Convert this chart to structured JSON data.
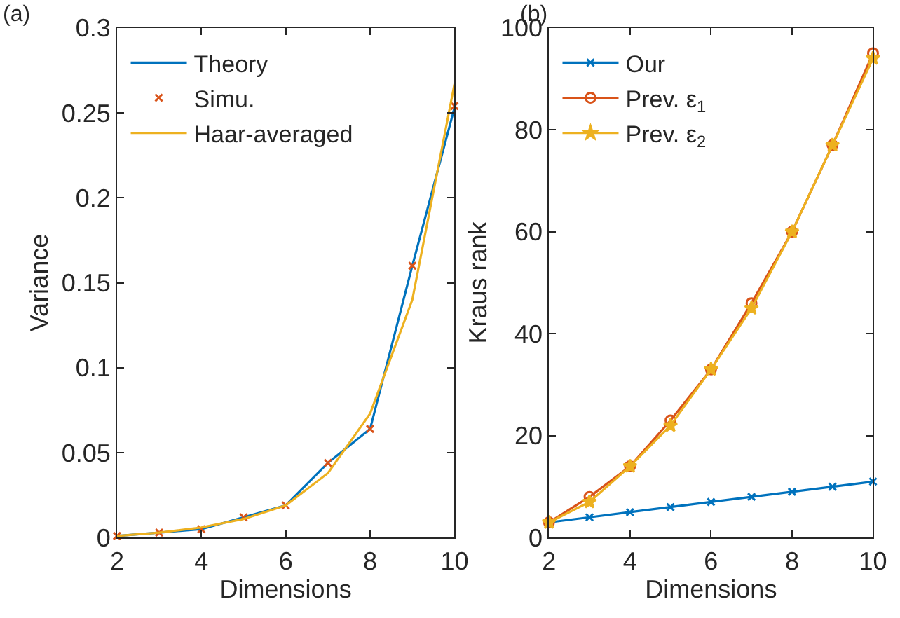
{
  "chart_data": [
    {
      "type": "line",
      "title": "(a)",
      "xlabel": "Dimensions",
      "ylabel": "Variance",
      "x": [
        2,
        3,
        4,
        5,
        6,
        7,
        8,
        9,
        10
      ],
      "xlim": [
        2,
        10
      ],
      "xticks": [
        2,
        4,
        6,
        8,
        10
      ],
      "ylim": [
        0,
        0.3
      ],
      "yticks": [
        0,
        0.05,
        0.1,
        0.15,
        0.2,
        0.25,
        0.3
      ],
      "legend": "top left",
      "series": [
        {
          "name": "Theory",
          "color": "#0072bd",
          "marker": "none",
          "values": [
            0.001,
            0.003,
            0.005,
            0.012,
            0.019,
            0.044,
            0.064,
            0.16,
            0.253
          ]
        },
        {
          "name": "Simu.",
          "type": "scatter",
          "color": "#d95319",
          "marker": "cross",
          "values": [
            0.001,
            0.003,
            0.005,
            0.012,
            0.019,
            0.044,
            0.064,
            0.16,
            0.254
          ]
        },
        {
          "name": "Haar-averaged",
          "color": "#edb120",
          "marker": "none",
          "values": [
            0.001,
            0.003,
            0.006,
            0.011,
            0.019,
            0.038,
            0.073,
            0.14,
            0.267
          ]
        }
      ]
    },
    {
      "type": "line",
      "title": "(b)",
      "xlabel": "Dimensions",
      "ylabel": "Kraus rank",
      "x": [
        2,
        3,
        4,
        5,
        6,
        7,
        8,
        9,
        10
      ],
      "xlim": [
        2,
        10
      ],
      "xticks": [
        2,
        4,
        6,
        8,
        10
      ],
      "ylim": [
        0,
        100
      ],
      "yticks": [
        0,
        20,
        40,
        60,
        80,
        100
      ],
      "legend": "top left",
      "series": [
        {
          "name": "Our",
          "color": "#0072bd",
          "marker": "cross",
          "values": [
            3,
            4,
            5,
            6,
            7,
            8,
            9,
            10,
            11
          ]
        },
        {
          "name": "Prev. ε$_{1}$",
          "color": "#d95319",
          "marker": "circle",
          "values": [
            3,
            8,
            14,
            23,
            33,
            46,
            60,
            77,
            95
          ]
        },
        {
          "name": "Prev. ε$_{2}$",
          "color": "#edb120",
          "marker": "star",
          "values": [
            3,
            7,
            14,
            22,
            33,
            45,
            60,
            77,
            94
          ]
        }
      ]
    }
  ]
}
